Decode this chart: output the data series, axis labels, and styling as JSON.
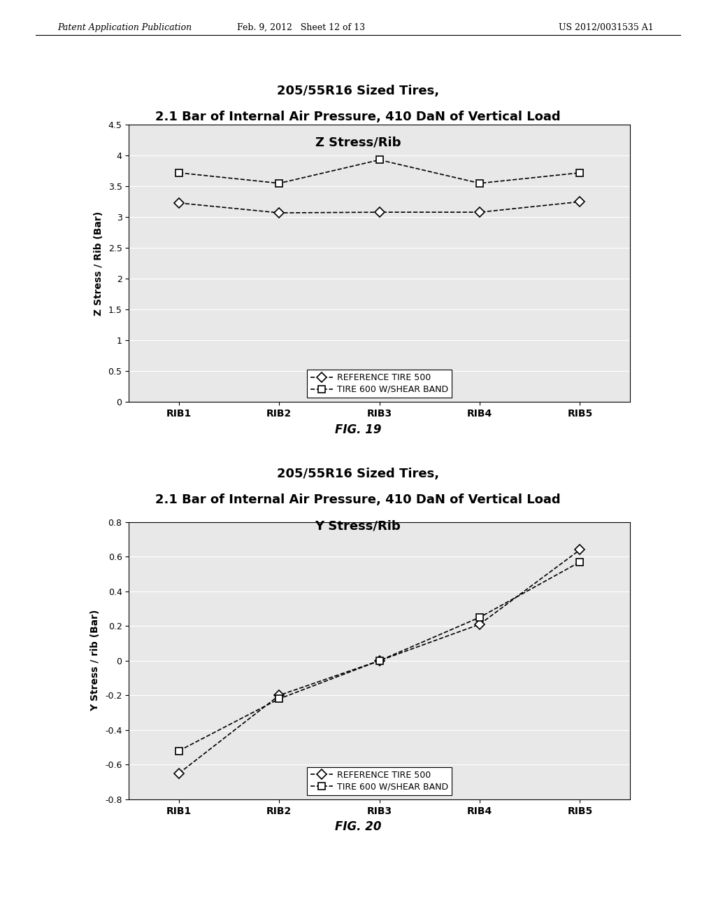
{
  "header_left": "Patent Application Publication",
  "header_mid": "Feb. 9, 2012   Sheet 12 of 13",
  "header_right": "US 2012/0031535 A1",
  "fig19": {
    "title_line1": "205/55R16 Sized Tires,",
    "title_line2": "2.1 Bar of Internal Air Pressure, 410 DaN of Vertical Load",
    "title_line3": "Z Stress/Rib",
    "ylabel": "Z Stress / Rib (Bar)",
    "xlabels": [
      "RIB1",
      "RIB2",
      "RIB3",
      "RIB4",
      "RIB5"
    ],
    "ylim": [
      0,
      4.5
    ],
    "yticks": [
      0,
      0.5,
      1.0,
      1.5,
      2.0,
      2.5,
      3.0,
      3.5,
      4.0,
      4.5
    ],
    "ref_data": [
      3.23,
      3.07,
      3.08,
      3.08,
      3.25
    ],
    "shear_data": [
      3.72,
      3.55,
      3.93,
      3.55,
      3.72
    ],
    "figname": "FIG. 19",
    "legend_ref": "REFERENCE TIRE 500",
    "legend_shear": "TIRE 600 W/SHEAR BAND"
  },
  "fig20": {
    "title_line1": "205/55R16 Sized Tires,",
    "title_line2": "2.1 Bar of Internal Air Pressure, 410 DaN of Vertical Load",
    "title_line3": "Y Stress/Rib",
    "ylabel": "Y Stress / rib (Bar)",
    "xlabels": [
      "RIB1",
      "RIB2",
      "RIB3",
      "RIB4",
      "RIB5"
    ],
    "ylim": [
      -0.8,
      0.8
    ],
    "yticks": [
      -0.8,
      -0.6,
      -0.4,
      -0.2,
      0.0,
      0.2,
      0.4,
      0.6,
      0.8
    ],
    "ref_data": [
      -0.65,
      -0.2,
      0.0,
      0.21,
      0.64
    ],
    "shear_data": [
      -0.52,
      -0.22,
      0.0,
      0.25,
      0.57
    ],
    "figname": "FIG. 20",
    "legend_ref": "REFERENCE TIRE 500",
    "legend_shear": "TIRE 600 W/SHEAR BAND"
  },
  "plot_bg": "#e8e8e8"
}
